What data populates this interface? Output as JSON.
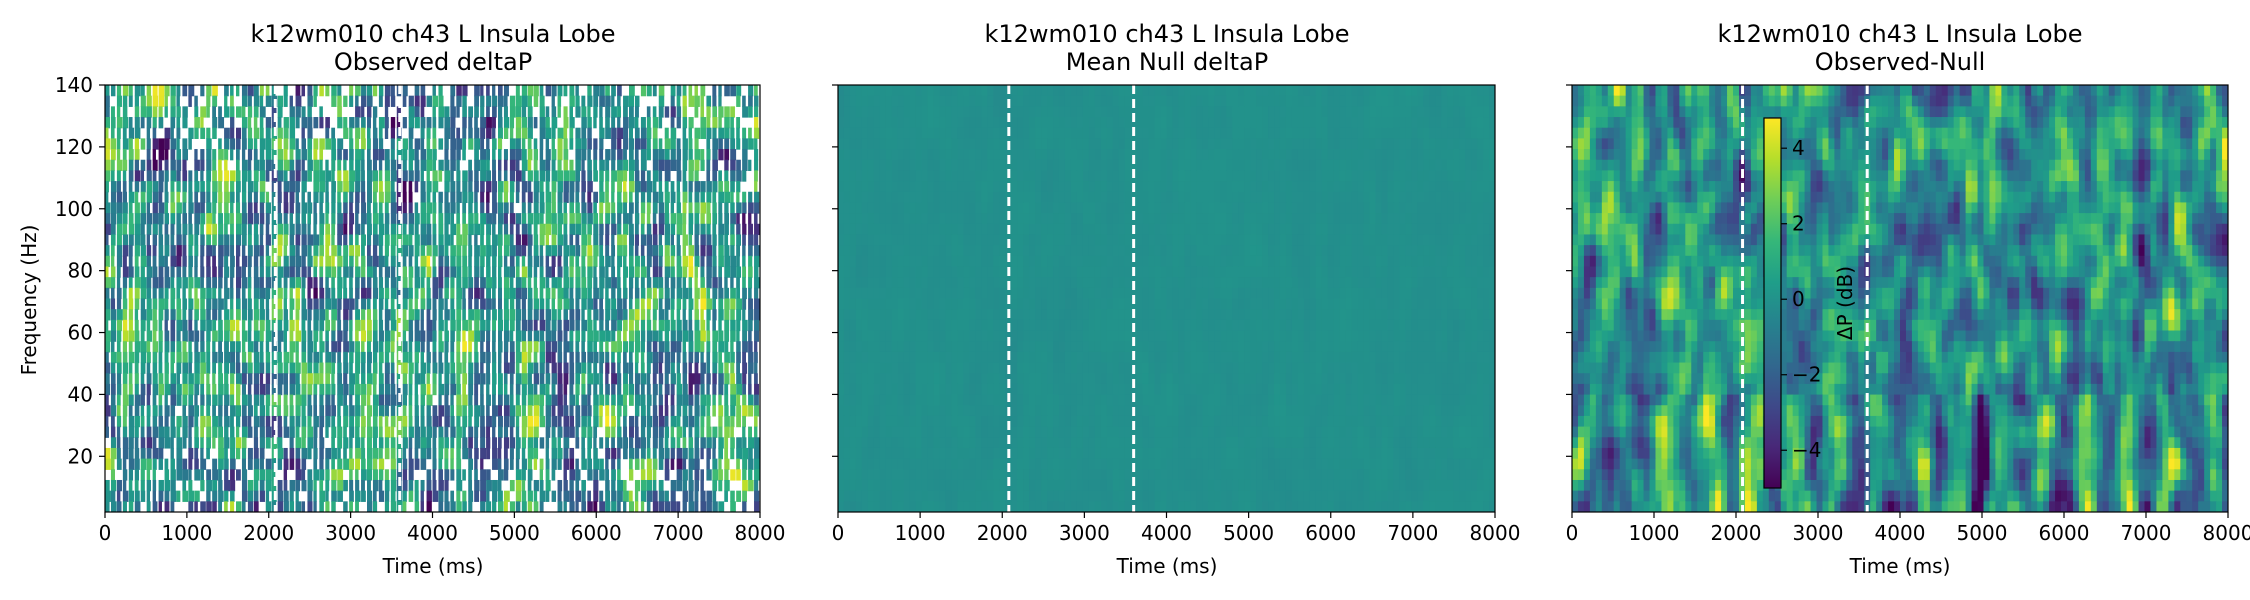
{
  "chart_data": [
    {
      "type": "heatmap",
      "title": "k12wm010 ch43 L Insula Lobe",
      "subtitle": "Observed deltaP",
      "xlabel": "Time (ms)",
      "ylabel": "Frequency (Hz)",
      "xlim": [
        0,
        8000
      ],
      "ylim": [
        2,
        140
      ],
      "x_ticks": [
        "0",
        "1000",
        "2000",
        "3000",
        "4000",
        "5000",
        "6000",
        "7000",
        "8000"
      ],
      "y_ticks": [
        "20",
        "40",
        "60",
        "80",
        "100",
        "120",
        "140"
      ],
      "event_lines_ms": [
        2080,
        3600
      ],
      "colormap": "viridis",
      "value_range_dB": [
        -5,
        5
      ],
      "masked_non_significant": true
    },
    {
      "type": "heatmap",
      "title": "k12wm010 ch43 L Insula Lobe",
      "subtitle": "Mean Null deltaP",
      "xlabel": "Time (ms)",
      "ylabel": "",
      "xlim": [
        0,
        8000
      ],
      "ylim": [
        2,
        140
      ],
      "x_ticks": [
        "0",
        "1000",
        "2000",
        "3000",
        "4000",
        "5000",
        "6000",
        "7000",
        "8000"
      ],
      "y_ticks": [],
      "event_lines_ms": [
        2080,
        3600
      ],
      "colormap": "viridis",
      "value_range_dB": [
        -5,
        5
      ],
      "approx_value_dB": 0
    },
    {
      "type": "heatmap",
      "title": "k12wm010 ch43 L Insula Lobe",
      "subtitle": "Observed-Null",
      "xlabel": "Time (ms)",
      "ylabel": "",
      "xlim": [
        0,
        8000
      ],
      "ylim": [
        2,
        140
      ],
      "x_ticks": [
        "0",
        "1000",
        "2000",
        "3000",
        "4000",
        "5000",
        "6000",
        "7000",
        "8000"
      ],
      "y_ticks": [],
      "event_lines_ms": [
        2080,
        3600
      ],
      "colormap": "viridis",
      "value_range_dB": [
        -5,
        5
      ],
      "colorbar": {
        "label": "ΔP (dB)",
        "ticks": [
          "4",
          "2",
          "0",
          "−2",
          "−4"
        ],
        "range": [
          -5,
          4.8
        ]
      }
    }
  ],
  "colors": {
    "viridis_low": "#440154",
    "viridis_mid": "#21918c",
    "viridis_high": "#fde725",
    "event_line": "#ffffff"
  }
}
